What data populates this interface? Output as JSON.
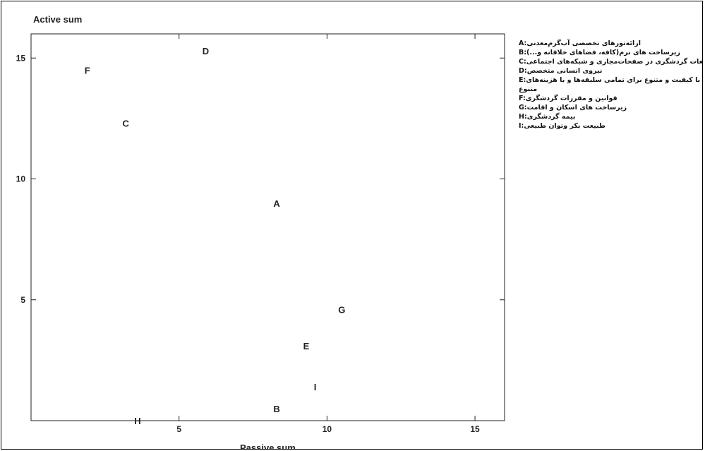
{
  "chart_data": {
    "type": "scatter",
    "xlabel": "Passive sum",
    "ylabel": "Active sum",
    "xlim": [
      0,
      16
    ],
    "ylim": [
      0,
      16
    ],
    "xticks": [
      5,
      10,
      15
    ],
    "yticks": [
      5,
      10,
      15
    ],
    "grid": false,
    "legend_position": "right",
    "points": [
      {
        "label": "A",
        "x": 8.3,
        "y": 9.0
      },
      {
        "label": "B",
        "x": 8.3,
        "y": 0.5
      },
      {
        "label": "C",
        "x": 3.2,
        "y": 12.3
      },
      {
        "label": "D",
        "x": 5.9,
        "y": 15.3
      },
      {
        "label": "E",
        "x": 9.3,
        "y": 3.1
      },
      {
        "label": "F",
        "x": 1.9,
        "y": 14.5
      },
      {
        "label": "G",
        "x": 10.5,
        "y": 4.6
      },
      {
        "label": "H",
        "x": 3.6,
        "y": 0.0
      },
      {
        "label": "I",
        "x": 9.6,
        "y": 1.4
      }
    ],
    "legend": [
      {
        "code": "A:",
        "text": "ارائه‌تورهای تخصصی آب‌گرم‌معدنی"
      },
      {
        "code": "B:",
        "text": "زیرساخت های نرم(کافه، فضاهای خلاقانه و...)"
      },
      {
        "code": "C:",
        "text": "تقویت تبلیغات گردشگری در صفحات‌مجازی و شبکه‌های اجتماعی"
      },
      {
        "code": "D:",
        "text": "نیروی انسانی متخصص"
      },
      {
        "code": "E:",
        "text": "هتل و اماکن اقامتی با کیفیت و متنوع برای تمامی سلیقه‌ها و با هزینه‌های"
      },
      {
        "code": "",
        "text": "متنوع"
      },
      {
        "code": "F:",
        "text": "قوانین و مقررات گردشگری"
      },
      {
        "code": "G:",
        "text": "زیرساخت های اسکان و اقامت"
      },
      {
        "code": "H:",
        "text": "بیمه گردشگری"
      },
      {
        "code": "I:",
        "text": "طبیعت بکر وتوان طبیعی"
      }
    ]
  }
}
